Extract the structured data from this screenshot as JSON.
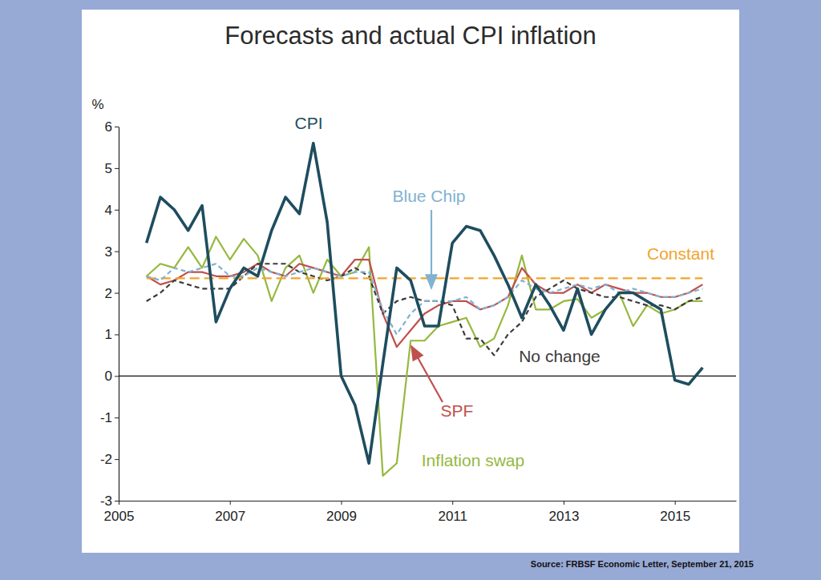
{
  "chart_data": {
    "type": "line",
    "title": "Forecasts and actual CPI inflation",
    "ylabel": "%",
    "source": "Source: FRBSF Economic Letter, September 21, 2015",
    "x": [
      2005.5,
      2005.75,
      2006.0,
      2006.25,
      2006.5,
      2006.75,
      2007.0,
      2007.25,
      2007.5,
      2007.75,
      2008.0,
      2008.25,
      2008.5,
      2008.75,
      2009.0,
      2009.25,
      2009.5,
      2009.75,
      2010.0,
      2010.25,
      2010.5,
      2010.75,
      2011.0,
      2011.25,
      2011.5,
      2011.75,
      2012.0,
      2012.25,
      2012.5,
      2012.75,
      2013.0,
      2013.25,
      2013.5,
      2013.75,
      2014.0,
      2014.25,
      2014.5,
      2014.75,
      2015.0,
      2015.25,
      2015.5
    ],
    "xlim": [
      2005,
      2016.1
    ],
    "xticks": [
      2005,
      2007,
      2009,
      2011,
      2013,
      2015
    ],
    "ylim": [
      -3,
      6
    ],
    "yticks": [
      -3,
      -2,
      -1,
      0,
      1,
      2,
      3,
      4,
      5,
      6
    ],
    "grid": false,
    "series": [
      {
        "name": "CPI",
        "color": "#1e4d5f",
        "line_style": "solid",
        "values": [
          3.2,
          4.3,
          4.0,
          3.5,
          4.1,
          1.3,
          2.1,
          2.6,
          2.4,
          3.5,
          4.3,
          3.9,
          5.6,
          3.7,
          0.0,
          -0.7,
          -2.1,
          0.3,
          2.6,
          2.3,
          1.2,
          1.2,
          3.2,
          3.6,
          3.5,
          2.9,
          2.2,
          1.4,
          2.2,
          1.7,
          1.1,
          2.1,
          1.0,
          1.6,
          2.0,
          2.0,
          1.8,
          1.6,
          -0.1,
          -0.2,
          0.2
        ]
      },
      {
        "name": "Blue Chip",
        "color": "#80b2d2",
        "line_style": "dashed",
        "values": [
          2.4,
          2.3,
          2.6,
          2.5,
          2.6,
          2.7,
          2.4,
          2.4,
          2.6,
          2.5,
          2.4,
          2.5,
          2.6,
          2.5,
          2.4,
          2.5,
          2.5,
          1.6,
          1.0,
          1.5,
          1.8,
          1.8,
          1.8,
          1.9,
          1.6,
          1.7,
          1.9,
          2.3,
          2.1,
          2.0,
          2.1,
          2.2,
          2.1,
          2.2,
          2.0,
          2.1,
          2.0,
          1.9,
          1.9,
          2.0,
          2.1
        ]
      },
      {
        "name": "Constant",
        "color": "#f2a42c",
        "line_style": "dashed",
        "values": [
          2.35,
          2.35,
          2.35,
          2.35,
          2.35,
          2.35,
          2.35,
          2.35,
          2.35,
          2.35,
          2.35,
          2.35,
          2.35,
          2.35,
          2.35,
          2.35,
          2.35,
          2.35,
          2.35,
          2.35,
          2.35,
          2.35,
          2.35,
          2.35,
          2.35,
          2.35,
          2.35,
          2.35,
          2.35,
          2.35,
          2.35,
          2.35,
          2.35,
          2.35,
          2.35,
          2.35,
          2.35,
          2.35,
          2.35,
          2.35,
          2.35
        ]
      },
      {
        "name": "No change",
        "color": "#3c3c3c",
        "line_style": "dashed",
        "values": [
          1.8,
          2.0,
          2.3,
          2.2,
          2.1,
          2.1,
          2.1,
          2.4,
          2.7,
          2.7,
          2.7,
          2.5,
          2.4,
          2.3,
          2.4,
          2.6,
          2.4,
          1.5,
          1.8,
          1.9,
          1.8,
          1.8,
          1.7,
          0.9,
          0.9,
          0.5,
          1.0,
          1.3,
          1.9,
          2.1,
          2.3,
          2.1,
          2.0,
          1.9,
          1.9,
          1.8,
          1.7,
          1.7,
          1.6,
          1.8,
          1.9
        ]
      },
      {
        "name": "SPF",
        "color": "#c0504d",
        "line_style": "solid",
        "values": [
          2.4,
          2.2,
          2.3,
          2.5,
          2.5,
          2.4,
          2.4,
          2.5,
          2.7,
          2.5,
          2.4,
          2.7,
          2.6,
          2.5,
          2.4,
          2.8,
          2.8,
          1.5,
          0.7,
          1.1,
          1.5,
          1.7,
          1.8,
          1.8,
          1.6,
          1.7,
          1.9,
          2.6,
          2.2,
          2.0,
          2.0,
          2.2,
          2.0,
          2.2,
          2.1,
          2.0,
          2.0,
          1.9,
          1.9,
          2.0,
          2.2
        ]
      },
      {
        "name": "Inflation swap",
        "color": "#96b83f",
        "line_style": "solid",
        "values": [
          2.4,
          2.7,
          2.6,
          3.1,
          2.6,
          3.35,
          2.8,
          3.3,
          2.9,
          1.8,
          2.6,
          2.9,
          2.0,
          2.8,
          2.4,
          2.5,
          3.1,
          -2.4,
          -2.1,
          0.85,
          0.85,
          1.2,
          1.3,
          1.4,
          0.7,
          0.9,
          1.7,
          2.9,
          1.6,
          1.6,
          1.8,
          1.85,
          1.4,
          1.6,
          2.0,
          1.2,
          1.7,
          1.5,
          1.6,
          1.8,
          1.8
        ]
      }
    ]
  }
}
